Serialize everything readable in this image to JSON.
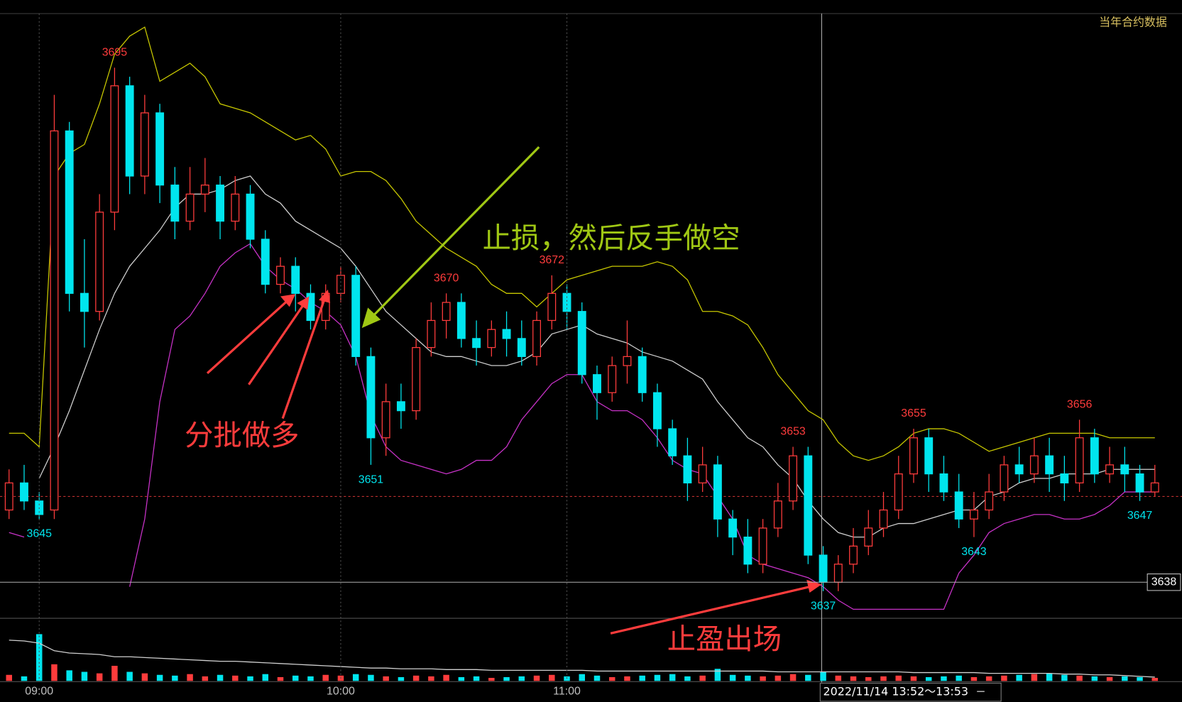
{
  "chart_data": {
    "type": "candlestick",
    "source_label": "当年合约数据",
    "categories": [
      null,
      null,
      "09:00",
      null,
      null,
      null,
      null,
      null,
      null,
      null,
      null,
      null,
      null,
      null,
      null,
      null,
      null,
      null,
      null,
      null,
      null,
      null,
      "10:00",
      null,
      null,
      null,
      null,
      null,
      null,
      null,
      null,
      null,
      null,
      null,
      null,
      null,
      null,
      "11:00",
      null,
      null,
      null,
      null,
      null,
      null,
      null,
      null,
      null,
      null,
      null,
      null,
      null,
      null,
      null,
      null,
      null,
      null,
      null,
      null,
      null,
      null,
      null,
      null,
      null,
      null,
      null,
      null,
      null,
      null,
      null,
      null,
      null,
      null,
      null,
      null,
      null,
      null,
      null
    ],
    "open": [
      3646,
      3649,
      3647,
      3646,
      3688,
      3670,
      3668,
      3679,
      3693,
      3683,
      3690,
      3682,
      3678,
      3681,
      3682,
      3678,
      3681,
      3676,
      3671,
      3673,
      3670,
      3667,
      3670,
      3672,
      3663,
      3654,
      3658,
      3657,
      3664,
      3667,
      3669,
      3665,
      3664,
      3666,
      3665,
      3663,
      3667,
      3670,
      3668,
      3661,
      3659,
      3662,
      3663,
      3659,
      3655,
      3652,
      3649,
      3651,
      3645,
      3643,
      3640,
      3644,
      3647,
      3652,
      3641,
      3638,
      3640,
      3642,
      3644,
      3646,
      3650,
      3654,
      3650,
      3648,
      3645,
      3646,
      3648,
      3651,
      3650,
      3652,
      3650,
      3649,
      3654,
      3650,
      3651,
      3650,
      3648
    ],
    "high": [
      3650.5,
      3651,
      3648,
      3692,
      3689,
      3676,
      3681,
      3695,
      3694,
      3692,
      3691,
      3684,
      3684,
      3685,
      3683,
      3683,
      3682,
      3677,
      3674,
      3674,
      3671,
      3671,
      3673,
      3673,
      3664,
      3660,
      3660,
      3665,
      3669,
      3670,
      3670,
      3667,
      3667,
      3668,
      3667,
      3668,
      3672,
      3671,
      3669,
      3662,
      3663,
      3667,
      3664,
      3660,
      3656,
      3654,
      3653,
      3652,
      3646,
      3645,
      3645,
      3649,
      3653,
      3653,
      3642,
      3641,
      3644,
      3646,
      3648,
      3652,
      3655,
      3655,
      3652,
      3650,
      3648,
      3650,
      3652,
      3653,
      3654,
      3654,
      3652,
      3656,
      3655,
      3653,
      3653,
      3651,
      3651
    ],
    "low": [
      3645,
      3646,
      3645,
      3645,
      3668,
      3664,
      3667,
      3677,
      3681,
      3681,
      3680,
      3676,
      3677,
      3679,
      3676,
      3677,
      3675,
      3670,
      3670,
      3668,
      3666,
      3666,
      3669,
      3662,
      3651,
      3652,
      3655,
      3656,
      3663,
      3665,
      3664,
      3662,
      3663,
      3663,
      3662,
      3662,
      3666,
      3666,
      3660,
      3656,
      3658,
      3660,
      3658,
      3653,
      3651,
      3647,
      3648,
      3643,
      3641,
      3639,
      3639,
      3643,
      3646,
      3640,
      3637,
      3637,
      3639,
      3641,
      3643,
      3645,
      3649,
      3648,
      3647,
      3644,
      3643,
      3645,
      3647,
      3649,
      3649,
      3648,
      3647,
      3648,
      3649,
      3649,
      3648,
      3647,
      3647.5
    ],
    "close": [
      3649,
      3647,
      3645.5,
      3688,
      3670,
      3668,
      3679,
      3693,
      3683,
      3690,
      3682,
      3678,
      3681,
      3682,
      3678,
      3681,
      3676,
      3671,
      3673,
      3670,
      3667,
      3670,
      3672,
      3663,
      3654,
      3658,
      3657,
      3664,
      3667,
      3669,
      3665,
      3664,
      3666,
      3665,
      3663,
      3667,
      3670,
      3668,
      3661,
      3659,
      3662,
      3663,
      3659,
      3655,
      3652,
      3649,
      3651,
      3645,
      3643,
      3640,
      3644,
      3647,
      3652,
      3641,
      3638,
      3640,
      3642,
      3644,
      3646,
      3650,
      3654,
      3650,
      3648,
      3645,
      3646,
      3648,
      3651,
      3650,
      3652,
      3650,
      3649,
      3654,
      3650,
      3651,
      3650,
      3648,
      3649
    ],
    "high_labels": [
      null,
      null,
      null,
      null,
      null,
      null,
      null,
      3695,
      null,
      null,
      null,
      null,
      null,
      null,
      null,
      null,
      null,
      null,
      null,
      null,
      null,
      null,
      null,
      null,
      null,
      null,
      null,
      null,
      null,
      3670,
      null,
      null,
      null,
      null,
      null,
      null,
      3672,
      null,
      null,
      null,
      null,
      null,
      null,
      null,
      null,
      null,
      null,
      null,
      null,
      null,
      null,
      null,
      3653,
      null,
      null,
      null,
      null,
      null,
      null,
      null,
      3655,
      null,
      null,
      null,
      null,
      null,
      null,
      null,
      null,
      null,
      null,
      3656,
      null,
      null,
      null,
      null,
      null
    ],
    "low_labels": [
      null,
      null,
      3645,
      null,
      null,
      null,
      null,
      null,
      null,
      null,
      null,
      null,
      null,
      null,
      null,
      null,
      null,
      null,
      null,
      null,
      null,
      null,
      null,
      null,
      3651,
      null,
      null,
      null,
      null,
      null,
      null,
      null,
      null,
      null,
      null,
      null,
      null,
      null,
      null,
      null,
      null,
      null,
      null,
      null,
      null,
      null,
      null,
      null,
      null,
      null,
      null,
      null,
      null,
      null,
      3637,
      null,
      null,
      null,
      null,
      null,
      null,
      null,
      null,
      null,
      3643,
      null,
      null,
      null,
      null,
      null,
      null,
      null,
      null,
      null,
      null,
      3647,
      null
    ],
    "up_color": "#ff3c3c",
    "down_color": "#00e5ee",
    "overlays": [
      {
        "color": "#c8c800",
        "values": [
          3654.5,
          3654.5,
          3653,
          3683,
          3685.5,
          3686.5,
          3691,
          3696.5,
          3698.5,
          3699.5,
          3693.5,
          3694.5,
          3695.5,
          3694,
          3691,
          3690.5,
          3690,
          3689,
          3688,
          3687,
          3687.5,
          3686,
          3683,
          3683.5,
          3683.5,
          3682.5,
          3680.5,
          3678,
          3676.5,
          3675,
          3674,
          3673,
          3671,
          3670,
          3670,
          3668.5,
          3670,
          3671.5,
          3672,
          3672.5,
          3673,
          3673,
          3673,
          3673.5,
          3673,
          3671.5,
          3668,
          3668,
          3667.5,
          3666.5,
          3664,
          3661,
          3659,
          3657,
          3656,
          3653.5,
          3652,
          3651.5,
          3652,
          3653,
          3654.5,
          3655,
          3655,
          3654.5,
          3653.5,
          3652.5,
          3653,
          3653.5,
          3654,
          3654.5,
          3654.5,
          3654.5,
          3654.5,
          3654,
          3654,
          3654,
          3654
        ]
      },
      {
        "color": "#d0d0d0",
        "values": [
          null,
          null,
          3649.5,
          3653,
          3657,
          3661.5,
          3666,
          3670,
          3673,
          3675,
          3677,
          3679.5,
          3681,
          3681,
          3681.5,
          3682.5,
          3683,
          3681,
          3680,
          3678,
          3677,
          3676,
          3675,
          3673,
          3670.5,
          3668,
          3666.5,
          3665,
          3663.5,
          3663,
          3663,
          3662.5,
          3662,
          3662,
          3662.5,
          3663.5,
          3665.5,
          3666,
          3666.5,
          3665.5,
          3665,
          3664.5,
          3663.5,
          3663,
          3662.5,
          3661.5,
          3660.5,
          3658,
          3656,
          3654,
          3653,
          3651,
          3649.5,
          3647,
          3645,
          3643.5,
          3643,
          3643,
          3644,
          3644.5,
          3644.5,
          3645,
          3645.5,
          3646,
          3646,
          3647.5,
          3648,
          3649,
          3649.5,
          3649.5,
          3650,
          3650,
          3650,
          3650.5,
          3650.5,
          3650.5,
          3650.5
        ]
      },
      {
        "color": "#c832c8",
        "values": [
          3643.5,
          3643,
          null,
          null,
          null,
          null,
          null,
          null,
          3637.5,
          3645,
          3658,
          3666,
          3667.5,
          3670,
          3673,
          3674.5,
          3675.5,
          3673,
          3671.5,
          3670.5,
          3669,
          3668,
          3666.5,
          3663,
          3656.5,
          3653,
          3651.5,
          3651,
          3650.5,
          3650,
          3650.5,
          3651.5,
          3651.5,
          3653,
          3656,
          3658,
          3660,
          3661,
          3661,
          3658,
          3657,
          3657,
          3656,
          3654,
          3651.5,
          3650.5,
          3650,
          3647.5,
          3645,
          3641,
          3640,
          3639.5,
          3639,
          3638.5,
          3637.5,
          3636,
          3635,
          3635,
          3635,
          3635,
          3635,
          3635,
          3635,
          3639,
          3641,
          3643.5,
          3644.5,
          3645,
          3645.5,
          3645.5,
          3645,
          3645,
          3645.5,
          3646.5,
          3648,
          3648,
          3648
        ]
      }
    ],
    "ylim": [
      3634,
      3701
    ],
    "reference_line": {
      "value": 3647.5,
      "color": "#c03030"
    },
    "crosshair": {
      "value": 3638,
      "time_label": "2022/11/14 13:52～13:53"
    },
    "volume": {
      "ylim": [
        0,
        80
      ],
      "values": [
        8,
        6,
        62,
        22,
        14,
        12,
        10,
        20,
        12,
        10,
        8,
        7,
        9,
        6,
        8,
        7,
        6,
        9,
        5,
        7,
        6,
        8,
        7,
        9,
        8,
        6,
        5,
        7,
        6,
        8,
        5,
        6,
        4,
        5,
        6,
        7,
        8,
        6,
        9,
        7,
        5,
        6,
        7,
        8,
        9,
        6,
        7,
        16,
        8,
        7,
        6,
        7,
        9,
        8,
        12,
        7,
        6,
        5,
        6,
        7,
        6,
        5,
        6,
        7,
        5,
        6,
        7,
        8,
        9,
        10,
        8,
        7,
        6,
        5,
        6,
        5,
        4
      ],
      "ma": [
        54,
        53,
        50,
        40,
        37,
        36,
        35,
        32,
        32,
        31,
        30,
        29,
        28,
        27,
        26,
        26,
        25,
        24,
        23,
        22,
        21,
        20,
        19,
        18,
        17,
        17,
        16,
        16,
        16,
        15,
        15,
        15,
        14,
        14,
        14,
        14,
        14,
        14,
        14,
        13,
        13,
        13,
        13,
        13,
        13,
        13,
        13,
        13,
        13,
        13,
        13,
        12,
        12,
        12,
        12,
        12,
        12,
        12,
        12,
        12,
        11,
        11,
        11,
        11,
        11,
        10,
        10,
        10,
        10,
        10,
        9,
        9,
        8,
        8,
        7,
        6,
        5
      ],
      "ma_color": "#d0d0d0"
    },
    "annotations": [
      {
        "text": "止损，然后反手做空",
        "color": "#a0c814"
      },
      {
        "text": "分批做多",
        "color": "#ff3c3c"
      },
      {
        "text": "止盈出场",
        "color": "#ff3c3c"
      }
    ]
  }
}
